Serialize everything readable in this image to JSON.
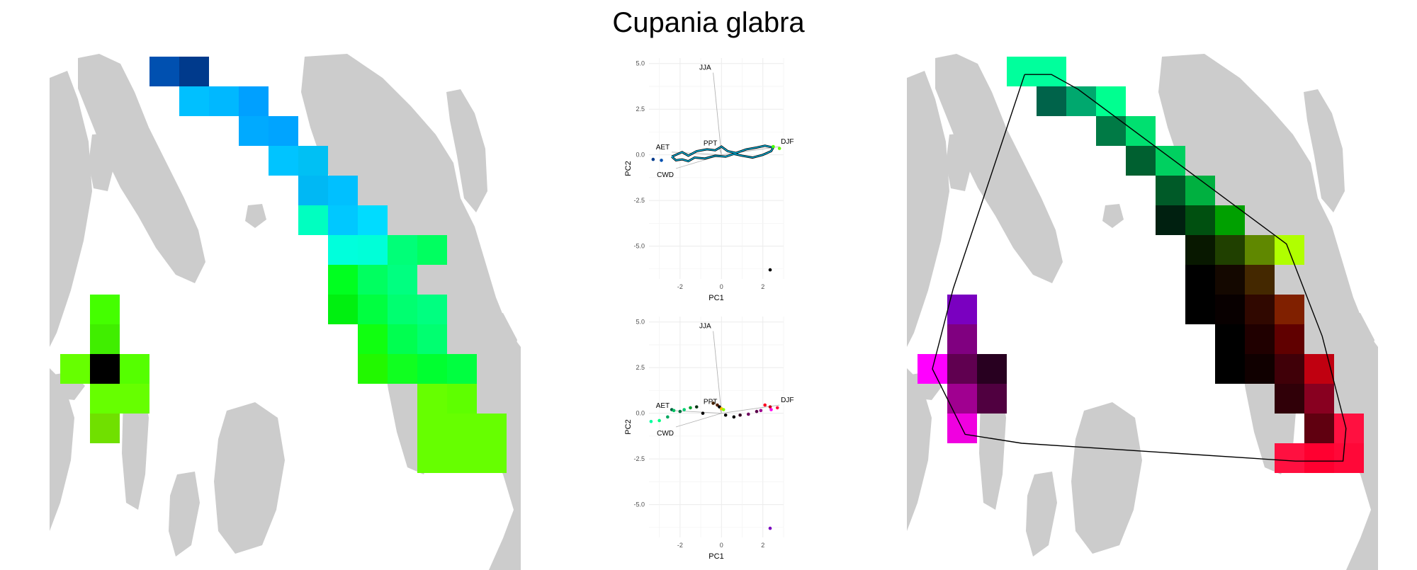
{
  "title": "Cupania glabra",
  "colors": {
    "land": "#cccccc",
    "grid": "#ebebeb",
    "arrow": "#b3b3b3",
    "background": "#ffffff"
  },
  "chart_data": [
    {
      "type": "heatmap",
      "panel": "map-left",
      "cells": [
        {
          "col": 3,
          "row": 0,
          "color": "#0050b0"
        },
        {
          "col": 4,
          "row": 0,
          "color": "#003a8c"
        },
        {
          "col": 4,
          "row": 1,
          "color": "#00c0ff"
        },
        {
          "col": 5,
          "row": 1,
          "color": "#00b8ff"
        },
        {
          "col": 6,
          "row": 1,
          "color": "#00a0ff"
        },
        {
          "col": 6,
          "row": 2,
          "color": "#00aaff"
        },
        {
          "col": 7,
          "row": 2,
          "color": "#00a4ff"
        },
        {
          "col": 7,
          "row": 3,
          "color": "#00c4ff"
        },
        {
          "col": 8,
          "row": 3,
          "color": "#00c0f4"
        },
        {
          "col": 8,
          "row": 4,
          "color": "#00b8f4"
        },
        {
          "col": 9,
          "row": 4,
          "color": "#00c0ff"
        },
        {
          "col": 8,
          "row": 5,
          "color": "#00ffc0"
        },
        {
          "col": 9,
          "row": 5,
          "color": "#00c8ff"
        },
        {
          "col": 10,
          "row": 5,
          "color": "#00dcff"
        },
        {
          "col": 9,
          "row": 6,
          "color": "#00ffdc"
        },
        {
          "col": 10,
          "row": 6,
          "color": "#00ffd8"
        },
        {
          "col": 11,
          "row": 6,
          "color": "#00ff78"
        },
        {
          "col": 12,
          "row": 6,
          "color": "#00ff60"
        },
        {
          "col": 9,
          "row": 7,
          "color": "#00ff20"
        },
        {
          "col": 10,
          "row": 7,
          "color": "#00ff60"
        },
        {
          "col": 11,
          "row": 7,
          "color": "#00ff80"
        },
        {
          "col": 1,
          "row": 8,
          "color": "#44ff00"
        },
        {
          "col": 9,
          "row": 8,
          "color": "#00f010"
        },
        {
          "col": 10,
          "row": 8,
          "color": "#00ff40"
        },
        {
          "col": 11,
          "row": 8,
          "color": "#00ff70"
        },
        {
          "col": 12,
          "row": 8,
          "color": "#00ff80"
        },
        {
          "col": 1,
          "row": 9,
          "color": "#40ee00"
        },
        {
          "col": 10,
          "row": 9,
          "color": "#10ff10"
        },
        {
          "col": 11,
          "row": 9,
          "color": "#00ff50"
        },
        {
          "col": 12,
          "row": 9,
          "color": "#00ff70"
        },
        {
          "col": 0,
          "row": 10,
          "color": "#66ff00"
        },
        {
          "col": 1,
          "row": 10,
          "color": "#000000"
        },
        {
          "col": 2,
          "row": 10,
          "color": "#55ff00"
        },
        {
          "col": 10,
          "row": 10,
          "color": "#22f800"
        },
        {
          "col": 11,
          "row": 10,
          "color": "#10ff20"
        },
        {
          "col": 12,
          "row": 10,
          "color": "#00ff30"
        },
        {
          "col": 13,
          "row": 10,
          "color": "#00ff40"
        },
        {
          "col": 1,
          "row": 11,
          "color": "#66ff00"
        },
        {
          "col": 2,
          "row": 11,
          "color": "#66ff00"
        },
        {
          "col": 12,
          "row": 11,
          "color": "#66ff00"
        },
        {
          "col": 13,
          "row": 11,
          "color": "#5eff00"
        },
        {
          "col": 1,
          "row": 12,
          "color": "#70e000"
        },
        {
          "col": 12,
          "row": 12,
          "color": "#66ff00"
        },
        {
          "col": 13,
          "row": 12,
          "color": "#66ff00"
        },
        {
          "col": 14,
          "row": 12,
          "color": "#66ff00"
        },
        {
          "col": 12,
          "row": 13,
          "color": "#66ff00"
        },
        {
          "col": 13,
          "row": 13,
          "color": "#66ff00"
        },
        {
          "col": 14,
          "row": 13,
          "color": "#66ff00"
        }
      ]
    },
    {
      "type": "scatter",
      "panel": "pca-top",
      "xlabel": "PC1",
      "ylabel": "PC2",
      "xlim": [
        -3.5,
        3
      ],
      "ylim": [
        -6.8,
        5.3
      ],
      "xticks": [
        -2,
        0,
        2
      ],
      "xtick_labels": [
        "-2",
        "0",
        "2"
      ],
      "yticks": [
        5,
        2.5,
        0,
        -2.5,
        -5
      ],
      "ytick_labels": [
        "5.0",
        "2.5",
        "0.0",
        "-2.5",
        "-5.0"
      ],
      "vectors": [
        {
          "label": "JJA",
          "x": -0.4,
          "y": 4.5
        },
        {
          "label": "PPT",
          "x": -0.1,
          "y": 0.35
        },
        {
          "label": "AET",
          "x": -2.4,
          "y": 0.15
        },
        {
          "label": "CWD",
          "x": -2.2,
          "y": -0.75
        },
        {
          "label": "DJF",
          "x": 2.8,
          "y": 0.45
        }
      ],
      "outline": {
        "outer_color": "#000000",
        "inner_color": "#00cfff",
        "x": [
          -2.4,
          -1.9,
          -1.6,
          -1.2,
          -0.7,
          -0.3,
          0.0,
          0.3,
          0.7,
          1.2,
          1.7,
          2.1,
          2.5,
          2.4,
          2.0,
          1.5,
          1.0,
          0.6,
          0.2,
          -0.3,
          -0.8,
          -1.3,
          -1.6,
          -1.9,
          -2.2,
          -2.4
        ],
        "y": [
          -0.1,
          0.15,
          -0.05,
          0.2,
          0.3,
          0.25,
          0.45,
          0.2,
          0.1,
          0.3,
          0.4,
          0.5,
          0.4,
          0.2,
          0.0,
          -0.15,
          -0.05,
          0.05,
          -0.1,
          -0.05,
          -0.2,
          -0.15,
          -0.35,
          -0.25,
          -0.3,
          -0.1
        ]
      },
      "points": [
        {
          "x": -3.3,
          "y": -0.25,
          "color": "#003a8c"
        },
        {
          "x": -2.9,
          "y": -0.3,
          "color": "#0050b0"
        },
        {
          "x": 2.8,
          "y": 0.35,
          "color": "#66ff00"
        },
        {
          "x": 2.5,
          "y": 0.45,
          "color": "#44ff00"
        },
        {
          "x": 2.35,
          "y": -6.3,
          "color": "#000000"
        }
      ]
    },
    {
      "type": "scatter",
      "panel": "pca-bottom",
      "xlabel": "PC1",
      "ylabel": "PC2",
      "xlim": [
        -3.5,
        3
      ],
      "ylim": [
        -6.8,
        5.3
      ],
      "xticks": [
        -2,
        0,
        2
      ],
      "xtick_labels": [
        "-2",
        "0",
        "2"
      ],
      "yticks": [
        5,
        2.5,
        0,
        -2.5,
        -5
      ],
      "ytick_labels": [
        "5.0",
        "2.5",
        "0.0",
        "-2.5",
        "-5.0"
      ],
      "vectors": [
        {
          "label": "JJA",
          "x": -0.4,
          "y": 4.5
        },
        {
          "label": "PPT",
          "x": -0.1,
          "y": 0.35
        },
        {
          "label": "AET",
          "x": -2.4,
          "y": 0.15
        },
        {
          "label": "CWD",
          "x": -2.2,
          "y": -0.75
        },
        {
          "label": "DJF",
          "x": 2.8,
          "y": 0.45
        }
      ],
      "points": [
        {
          "x": -3.4,
          "y": -0.45,
          "color": "#00ffa0"
        },
        {
          "x": -3.0,
          "y": -0.4,
          "color": "#00ff80"
        },
        {
          "x": -2.6,
          "y": -0.2,
          "color": "#00a860"
        },
        {
          "x": -2.4,
          "y": 0.2,
          "color": "#006040"
        },
        {
          "x": -2.3,
          "y": 0.15,
          "color": "#00c060"
        },
        {
          "x": -2.0,
          "y": 0.1,
          "color": "#007040"
        },
        {
          "x": -1.8,
          "y": 0.2,
          "color": "#00d070"
        },
        {
          "x": -1.5,
          "y": 0.3,
          "color": "#00a030"
        },
        {
          "x": -1.2,
          "y": 0.35,
          "color": "#003010"
        },
        {
          "x": -0.9,
          "y": 0.0,
          "color": "#000000"
        },
        {
          "x": -0.4,
          "y": 0.55,
          "color": "#442200"
        },
        {
          "x": -0.2,
          "y": 0.45,
          "color": "#552200"
        },
        {
          "x": -0.1,
          "y": 0.35,
          "color": "#000000"
        },
        {
          "x": 0.0,
          "y": 0.25,
          "color": "#ffbb00"
        },
        {
          "x": 0.1,
          "y": 0.2,
          "color": "#88ff00"
        },
        {
          "x": 0.2,
          "y": -0.1,
          "color": "#000000"
        },
        {
          "x": 0.6,
          "y": -0.2,
          "color": "#000000"
        },
        {
          "x": 0.9,
          "y": -0.1,
          "color": "#300020"
        },
        {
          "x": 1.3,
          "y": -0.05,
          "color": "#700060"
        },
        {
          "x": 1.7,
          "y": 0.1,
          "color": "#5a004a"
        },
        {
          "x": 1.9,
          "y": 0.15,
          "color": "#a00090"
        },
        {
          "x": 2.1,
          "y": 0.45,
          "color": "#ff0020"
        },
        {
          "x": 2.35,
          "y": 0.35,
          "color": "#c00010"
        },
        {
          "x": 2.7,
          "y": 0.3,
          "color": "#ff1040"
        },
        {
          "x": 2.4,
          "y": 0.2,
          "color": "#ff00ee"
        },
        {
          "x": 2.35,
          "y": -6.3,
          "color": "#7a00c0"
        }
      ]
    },
    {
      "type": "heatmap",
      "panel": "map-right",
      "cells": [
        {
          "col": 3,
          "row": 0,
          "color": "#00ff9c"
        },
        {
          "col": 4,
          "row": 0,
          "color": "#00ff9c"
        },
        {
          "col": 4,
          "row": 1,
          "color": "#00634a"
        },
        {
          "col": 5,
          "row": 1,
          "color": "#00a86e"
        },
        {
          "col": 6,
          "row": 1,
          "color": "#00ff90"
        },
        {
          "col": 6,
          "row": 2,
          "color": "#007a45"
        },
        {
          "col": 7,
          "row": 2,
          "color": "#00e070"
        },
        {
          "col": 7,
          "row": 3,
          "color": "#006030"
        },
        {
          "col": 8,
          "row": 3,
          "color": "#00d060"
        },
        {
          "col": 8,
          "row": 4,
          "color": "#005a28"
        },
        {
          "col": 9,
          "row": 4,
          "color": "#00b040"
        },
        {
          "col": 8,
          "row": 5,
          "color": "#002010"
        },
        {
          "col": 9,
          "row": 5,
          "color": "#005010"
        },
        {
          "col": 10,
          "row": 5,
          "color": "#00a000"
        },
        {
          "col": 9,
          "row": 6,
          "color": "#081800"
        },
        {
          "col": 10,
          "row": 6,
          "color": "#204000"
        },
        {
          "col": 11,
          "row": 6,
          "color": "#608800"
        },
        {
          "col": 12,
          "row": 6,
          "color": "#b0ff00"
        },
        {
          "col": 9,
          "row": 7,
          "color": "#000000"
        },
        {
          "col": 10,
          "row": 7,
          "color": "#140800"
        },
        {
          "col": 11,
          "row": 7,
          "color": "#442800"
        },
        {
          "col": 1,
          "row": 8,
          "color": "#7a00c0"
        },
        {
          "col": 9,
          "row": 8,
          "color": "#000000"
        },
        {
          "col": 10,
          "row": 8,
          "color": "#080000"
        },
        {
          "col": 11,
          "row": 8,
          "color": "#300800"
        },
        {
          "col": 12,
          "row": 8,
          "color": "#802000"
        },
        {
          "col": 1,
          "row": 9,
          "color": "#800080"
        },
        {
          "col": 10,
          "row": 9,
          "color": "#000000"
        },
        {
          "col": 11,
          "row": 9,
          "color": "#200000"
        },
        {
          "col": 12,
          "row": 9,
          "color": "#600000"
        },
        {
          "col": 0,
          "row": 10,
          "color": "#ff00ff"
        },
        {
          "col": 1,
          "row": 10,
          "color": "#600050"
        },
        {
          "col": 2,
          "row": 10,
          "color": "#280020"
        },
        {
          "col": 10,
          "row": 10,
          "color": "#000000"
        },
        {
          "col": 11,
          "row": 10,
          "color": "#100000"
        },
        {
          "col": 12,
          "row": 10,
          "color": "#400008"
        },
        {
          "col": 13,
          "row": 10,
          "color": "#c00010"
        },
        {
          "col": 1,
          "row": 11,
          "color": "#a00090"
        },
        {
          "col": 2,
          "row": 11,
          "color": "#500040"
        },
        {
          "col": 12,
          "row": 11,
          "color": "#300008"
        },
        {
          "col": 13,
          "row": 11,
          "color": "#880020"
        },
        {
          "col": 1,
          "row": 12,
          "color": "#f000e0"
        },
        {
          "col": 13,
          "row": 12,
          "color": "#600010"
        },
        {
          "col": 14,
          "row": 12,
          "color": "#ff1040"
        },
        {
          "col": 12,
          "row": 13,
          "color": "#ff1040"
        },
        {
          "col": 13,
          "row": 13,
          "color": "#ff0030"
        },
        {
          "col": 14,
          "row": 13,
          "color": "#ff0838"
        }
      ],
      "hull": {
        "color": "#000000",
        "x": [
          3.6,
          4.5,
          5.4,
          12.4,
          13.6,
          14.4,
          14.3,
          12.7,
          3.5,
          1.6,
          0.5,
          1.2,
          3.6
        ],
        "y": [
          0.6,
          0.6,
          1.1,
          6.3,
          9.4,
          12.5,
          13.6,
          13.6,
          13.0,
          12.7,
          10.5,
          7.8,
          0.6
        ]
      }
    }
  ]
}
